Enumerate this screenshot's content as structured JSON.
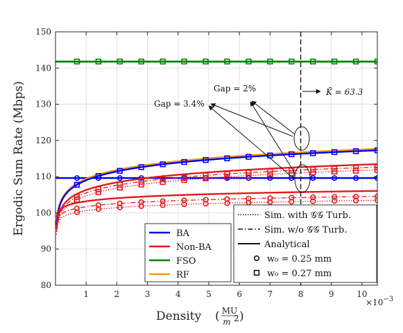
{
  "chart_data": {
    "type": "line",
    "xlabel": "Density",
    "xlabel_unit_num": "MU",
    "xlabel_unit_den": "m",
    "xlabel_unit_den_exp": "2",
    "x_scale_label": "×10",
    "x_scale_exp": "−3",
    "ylabel": "Ergodic Sum Rate (Mbps)",
    "xlim": [
      0.0,
      10.5
    ],
    "ylim": [
      80,
      150
    ],
    "xticks": [
      "1",
      "2",
      "3",
      "4",
      "5",
      "6",
      "7",
      "8",
      "9",
      "10"
    ],
    "yticks": [
      "80",
      "90",
      "100",
      "110",
      "120",
      "130",
      "140",
      "150"
    ],
    "grid": true,
    "legend_left": [
      {
        "label": "BA",
        "color": "#0000ff"
      },
      {
        "label": "Non-BA",
        "color": "#e31a1c"
      },
      {
        "label": "FSO",
        "color": "#008000"
      },
      {
        "label": "RF",
        "color": "#ff9900"
      }
    ],
    "legend_right": [
      {
        "label": "Sim. with 𝒢𝒢 Turb.",
        "style": "dotted"
      },
      {
        "label": "Sim. w/o 𝒢𝒢 Turb.",
        "style": "dashdot"
      },
      {
        "label": "Analytical",
        "style": "solid"
      },
      {
        "label": "w₀ = 0.25 mm",
        "marker": "circle"
      },
      {
        "label": "w₀ = 0.27 mm",
        "marker": "square"
      }
    ],
    "annotations": {
      "gap1": "Gap = 2%",
      "gap2": "Gap = 3.4%",
      "kbar": "K̄ = 63.3"
    },
    "vline_x": 8,
    "marker_x": [
      0.7,
      1.4,
      2.1,
      2.8,
      3.5,
      4.2,
      4.9,
      5.6,
      6.3,
      7.0,
      7.7,
      8.4,
      9.1,
      9.8,
      10.5
    ],
    "series": [
      {
        "name": "FSO",
        "color": "#008000",
        "kind": "const",
        "analytical": 141.8,
        "sim": 141.6,
        "marker": "square"
      },
      {
        "name": "BA",
        "color": "#0000ff",
        "kind": "const",
        "analytical": 109.6,
        "sim": 109.6,
        "marker": "circle"
      },
      {
        "name": "RF",
        "color": "#ff9900",
        "kind": "log",
        "a": 109.0,
        "b": 8.1,
        "marker": "square",
        "offset": 0.4
      },
      {
        "name": "BA",
        "color": "#0000ff",
        "kind": "log",
        "a": 109.0,
        "b": 8.1,
        "marker": "square",
        "offset": 0.0
      },
      {
        "name": "Non-BA",
        "color": "#e31a1c",
        "kind": "log",
        "a": 106.3,
        "b": 7.0,
        "marker": "square",
        "offset": 0.0,
        "sim_offset": -1.6,
        "dd_offset": -0.8
      },
      {
        "name": "Non-BA",
        "color": "#e31a1c",
        "kind": "log",
        "a": 103.2,
        "b": 2.8,
        "marker": "circle",
        "offset": 0.0,
        "sim_offset": -2.6,
        "dd_offset": -1.5
      }
    ]
  }
}
